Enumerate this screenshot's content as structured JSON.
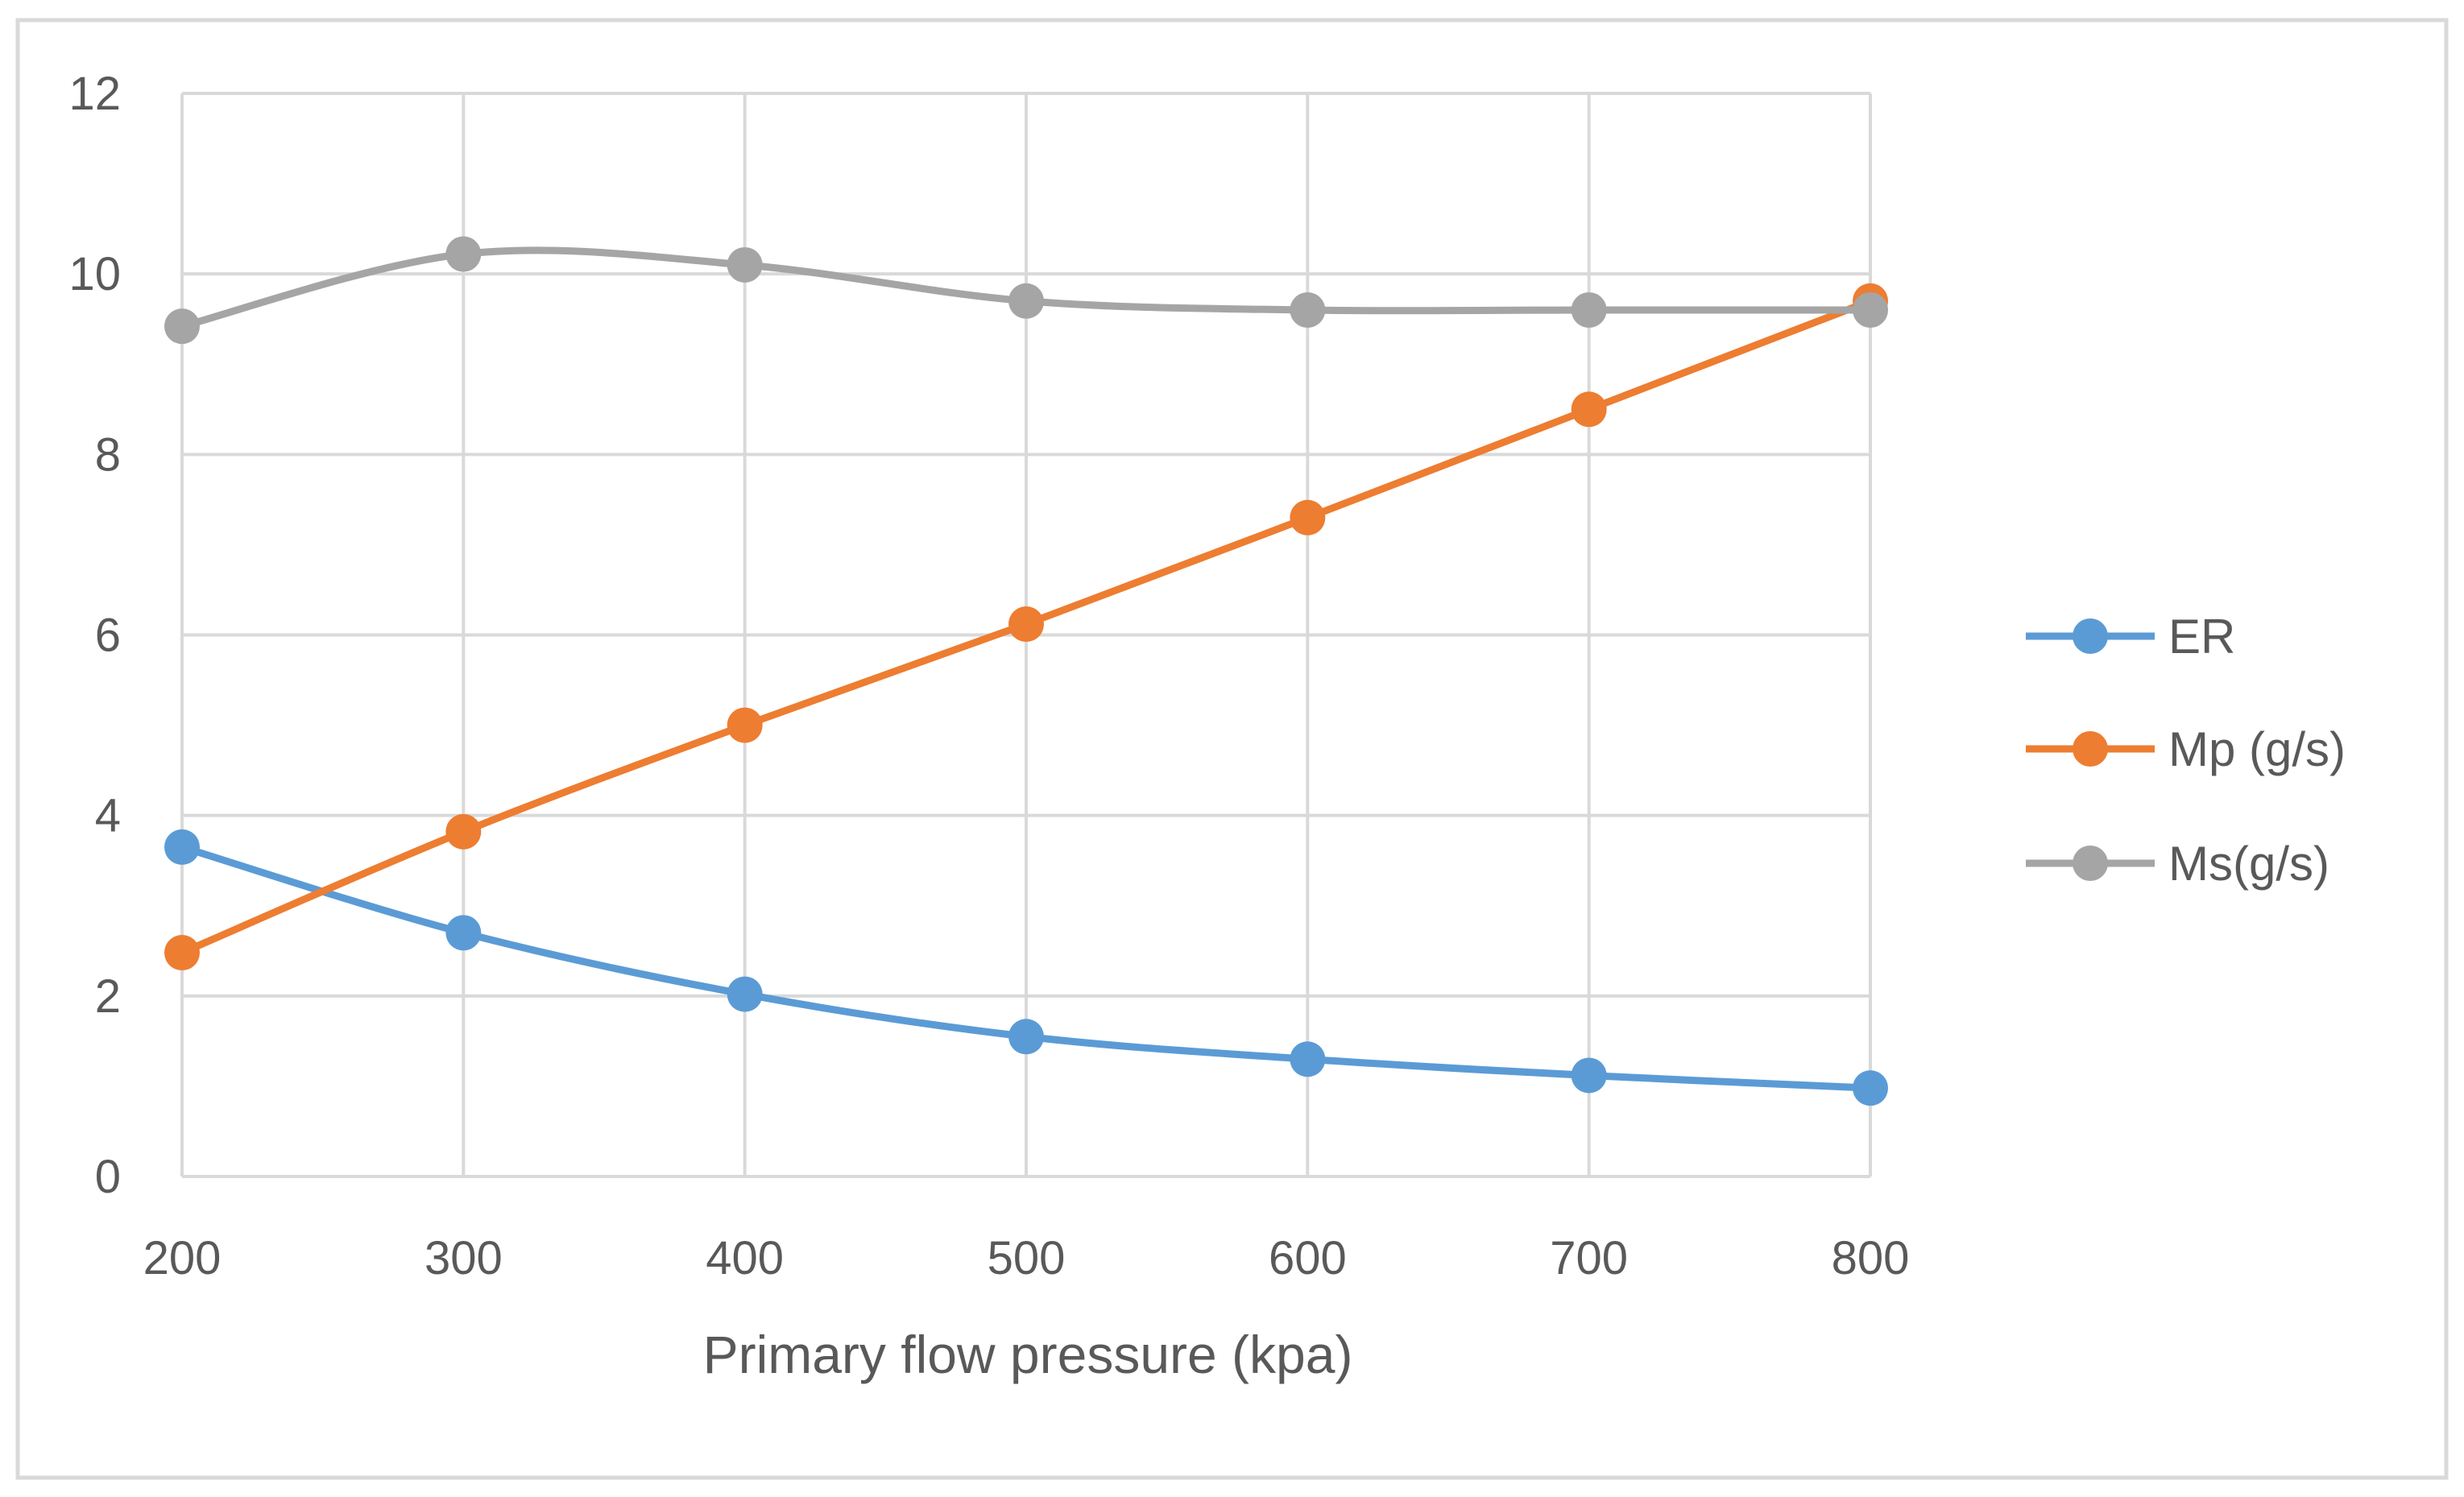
{
  "chart_data": {
    "type": "line",
    "title": "",
    "xlabel": "Primary flow pressure (kpa)",
    "ylabel": "",
    "x": [
      200,
      300,
      400,
      500,
      600,
      700,
      800
    ],
    "ylim": [
      0,
      12
    ],
    "y_ticks": [
      0,
      2,
      4,
      6,
      8,
      10,
      12
    ],
    "grid": true,
    "legend_position": "right",
    "series": [
      {
        "name": "ER",
        "color": "#5B9BD5",
        "values": [
          3.65,
          2.7,
          2.02,
          1.55,
          1.3,
          1.12,
          0.98
        ]
      },
      {
        "name": "Mp (g/s)",
        "color": "#ED7D31",
        "values": [
          2.48,
          3.82,
          5.0,
          6.12,
          7.3,
          8.5,
          9.7
        ]
      },
      {
        "name": "Ms(g/s)",
        "color": "#A5A5A5",
        "values": [
          9.42,
          10.22,
          10.1,
          9.7,
          9.6,
          9.6,
          9.6
        ]
      }
    ]
  }
}
